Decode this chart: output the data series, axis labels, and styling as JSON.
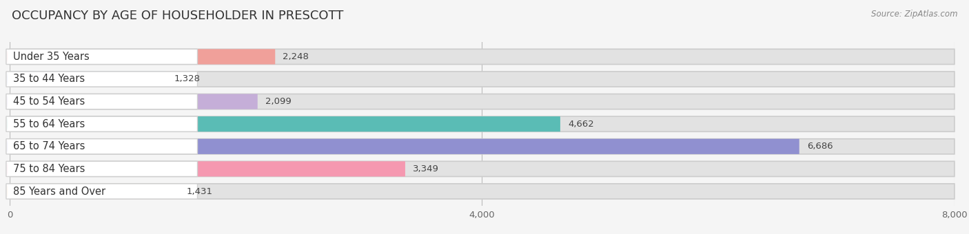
{
  "title": "OCCUPANCY BY AGE OF HOUSEHOLDER IN PRESCOTT",
  "source": "Source: ZipAtlas.com",
  "categories": [
    "Under 35 Years",
    "35 to 44 Years",
    "45 to 54 Years",
    "55 to 64 Years",
    "65 to 74 Years",
    "75 to 84 Years",
    "85 Years and Over"
  ],
  "values": [
    2248,
    1328,
    2099,
    4662,
    6686,
    3349,
    1431
  ],
  "bar_colors": [
    "#f0a09a",
    "#a8c0ea",
    "#c5aed8",
    "#5abcb5",
    "#9090d0",
    "#f598b0",
    "#f5c898"
  ],
  "dot_colors": [
    "#e07070",
    "#7090d0",
    "#9070c0",
    "#30a090",
    "#6060c0",
    "#e06090",
    "#e0a050"
  ],
  "bar_bg_color": "#e2e2e2",
  "label_bg_color": "#ffffff",
  "background_color": "#f5f5f5",
  "xlim": [
    0,
    8000
  ],
  "xticks": [
    0,
    4000,
    8000
  ],
  "title_fontsize": 13,
  "label_fontsize": 10.5,
  "value_fontsize": 9.5,
  "source_fontsize": 8.5
}
